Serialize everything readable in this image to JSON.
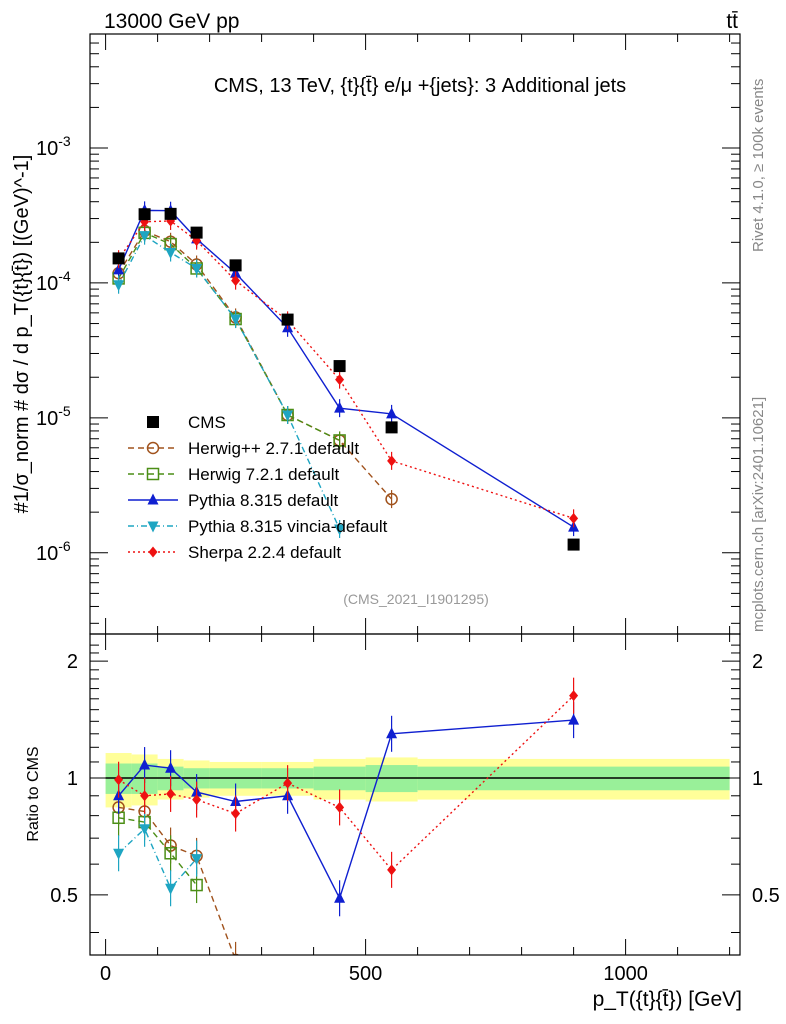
{
  "header": {
    "beam": "13000 GeV pp",
    "process": "tt̄"
  },
  "side_labels": {
    "rivet": "Rivet 4.1.0, ≥ 100k events",
    "mcplots": "mcplots.cern.ch [arXiv:2401.10621]"
  },
  "chart_data": {
    "type": "line",
    "title": "CMS, 13 TeV, {t}{t̄} e/μ +{jets}: 3 Additional jets",
    "analysis_id": "(CMS_2021_I1901295)",
    "xlabel": "p_T({t}{t̄}) [GeV]",
    "ylabel": "#1/σ_norm # dσ / d p_T({t}{t̄}) [(GeV)^-1]",
    "ratio_ylabel": "Ratio to CMS",
    "xlim": [
      -30,
      1220
    ],
    "ylim": [
      2.5e-07,
      0.007
    ],
    "yscale": "log",
    "ratio_ylim": [
      0.35,
      2.35
    ],
    "x_ticks": [
      0,
      500,
      1000
    ],
    "x_tick_labels": [
      "0",
      "500",
      "1000"
    ],
    "y_ticks": [
      1e-06,
      1e-05,
      0.0001,
      0.001
    ],
    "y_tick_labels": [
      "10^-6",
      "10^-5",
      "10^-4",
      "10^-3"
    ],
    "ratio_ticks": [
      0.5,
      1,
      2
    ],
    "ratio_tick_labels": [
      "0.5",
      "1",
      "2"
    ],
    "bin_edges": [
      0,
      50,
      100,
      150,
      200,
      300,
      400,
      500,
      600,
      1200
    ],
    "legend_position": "left-middle",
    "band_inner": [
      0.09,
      0.09,
      0.07,
      0.06,
      0.06,
      0.06,
      0.07,
      0.08,
      0.07
    ],
    "band_outer": [
      0.16,
      0.15,
      0.12,
      0.11,
      0.1,
      0.1,
      0.12,
      0.13,
      0.12
    ],
    "reference": {
      "name": "CMS",
      "x": [
        25,
        75,
        125,
        175,
        250,
        350,
        450,
        550,
        900
      ],
      "values": [
        0.000152,
        0.000323,
        0.000325,
        0.000236,
        0.000135,
        5.35e-05,
        2.42e-05,
        8.5e-06,
        1.15e-06
      ],
      "color": "#000000"
    },
    "series": [
      {
        "name": "Herwig++ 2.7.1 default",
        "color": "#a0521c",
        "marker": "open-circle",
        "dash": "6,4",
        "x": [
          25,
          75,
          125,
          175,
          250,
          350,
          450,
          550
        ],
        "values": [
          0.000118,
          0.000243,
          0.000202,
          0.000137,
          5.55e-05,
          1.05e-05,
          6.8e-06,
          2.5e-06
        ],
        "ratio": [
          0.84,
          0.82,
          0.67,
          0.63,
          0.34
        ]
      },
      {
        "name": "Herwig 7.2.1 default",
        "color": "#4b8e16",
        "marker": "open-square",
        "dash": "6,4",
        "x": [
          25,
          75,
          125,
          175,
          250,
          350,
          450
        ],
        "values": [
          0.000108,
          0.000235,
          0.000194,
          0.000128,
          5.4e-05,
          1.05e-05,
          6.8e-06
        ],
        "ratio": [
          0.79,
          0.77,
          0.64,
          0.53
        ]
      },
      {
        "name": "Pythia 8.315 default",
        "color": "#0f1fd0",
        "marker": "triangle-up",
        "dash": "",
        "x": [
          25,
          75,
          125,
          175,
          250,
          350,
          450,
          550,
          900
        ],
        "values": [
          0.000125,
          0.000345,
          0.000343,
          0.000212,
          0.000118,
          4.65e-05,
          1.18e-05,
          1.07e-05,
          1.55e-06
        ],
        "ratio": [
          0.9,
          1.08,
          1.06,
          0.92,
          0.87,
          0.9,
          0.49,
          1.3,
          1.41
        ]
      },
      {
        "name": "Pythia 8.315 vincia-default",
        "color": "#1ea5c2",
        "marker": "triangle-down",
        "dash": "6,3,1,3",
        "x": [
          25,
          75,
          125,
          175,
          250,
          350,
          450
        ],
        "values": [
          9.7e-05,
          0.000224,
          0.000168,
          0.000128,
          5.4e-05,
          1.05e-05,
          1.5e-06
        ],
        "ratio": [
          0.64,
          0.74,
          0.52,
          0.62
        ]
      },
      {
        "name": "Sherpa 2.2.4 default",
        "color": "#ee1111",
        "marker": "diamond",
        "dash": "2,3",
        "x": [
          25,
          75,
          125,
          175,
          250,
          350,
          450,
          550,
          900
        ],
        "values": [
          0.00015,
          0.000284,
          0.000288,
          0.000206,
          0.000104,
          5.28e-05,
          1.92e-05,
          4.8e-06,
          1.8e-06
        ],
        "ratio": [
          0.99,
          0.9,
          0.91,
          0.88,
          0.81,
          0.97,
          0.84,
          0.58,
          1.63
        ]
      }
    ]
  }
}
